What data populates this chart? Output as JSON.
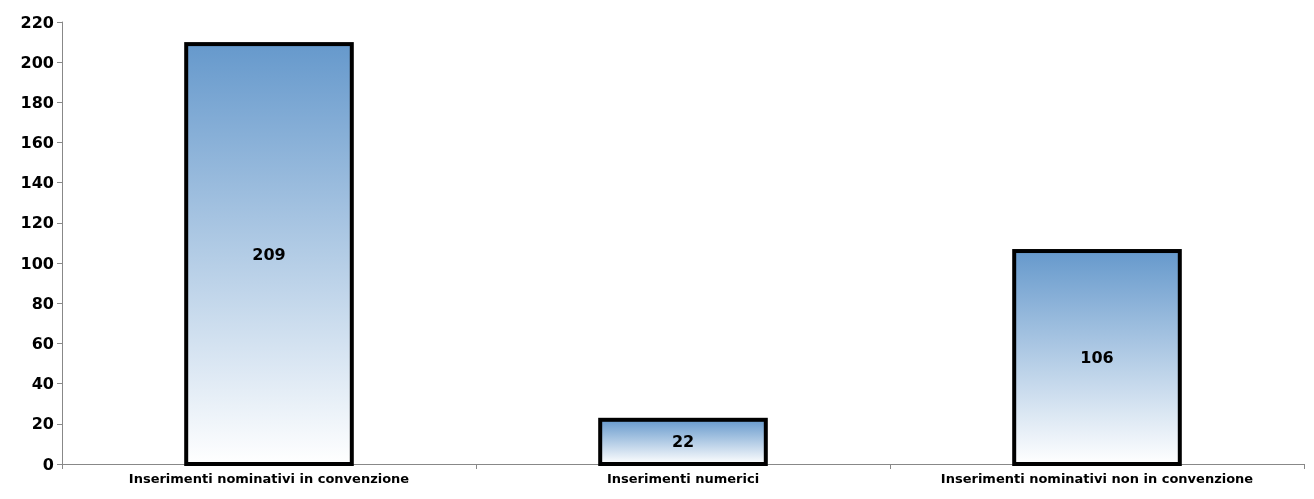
{
  "chart_data": {
    "type": "bar",
    "categories": [
      "Inserimenti nominativi in convenzione",
      "Inserimenti numerici",
      "Inserimenti nominativi non in convenzione"
    ],
    "values": [
      209,
      22,
      106
    ],
    "color": "#6699cc",
    "ylim": [
      0,
      220
    ],
    "yticks": [
      0,
      20,
      40,
      60,
      80,
      100,
      120,
      140,
      160,
      180,
      200,
      220
    ],
    "grid": false,
    "data_labels": true
  }
}
